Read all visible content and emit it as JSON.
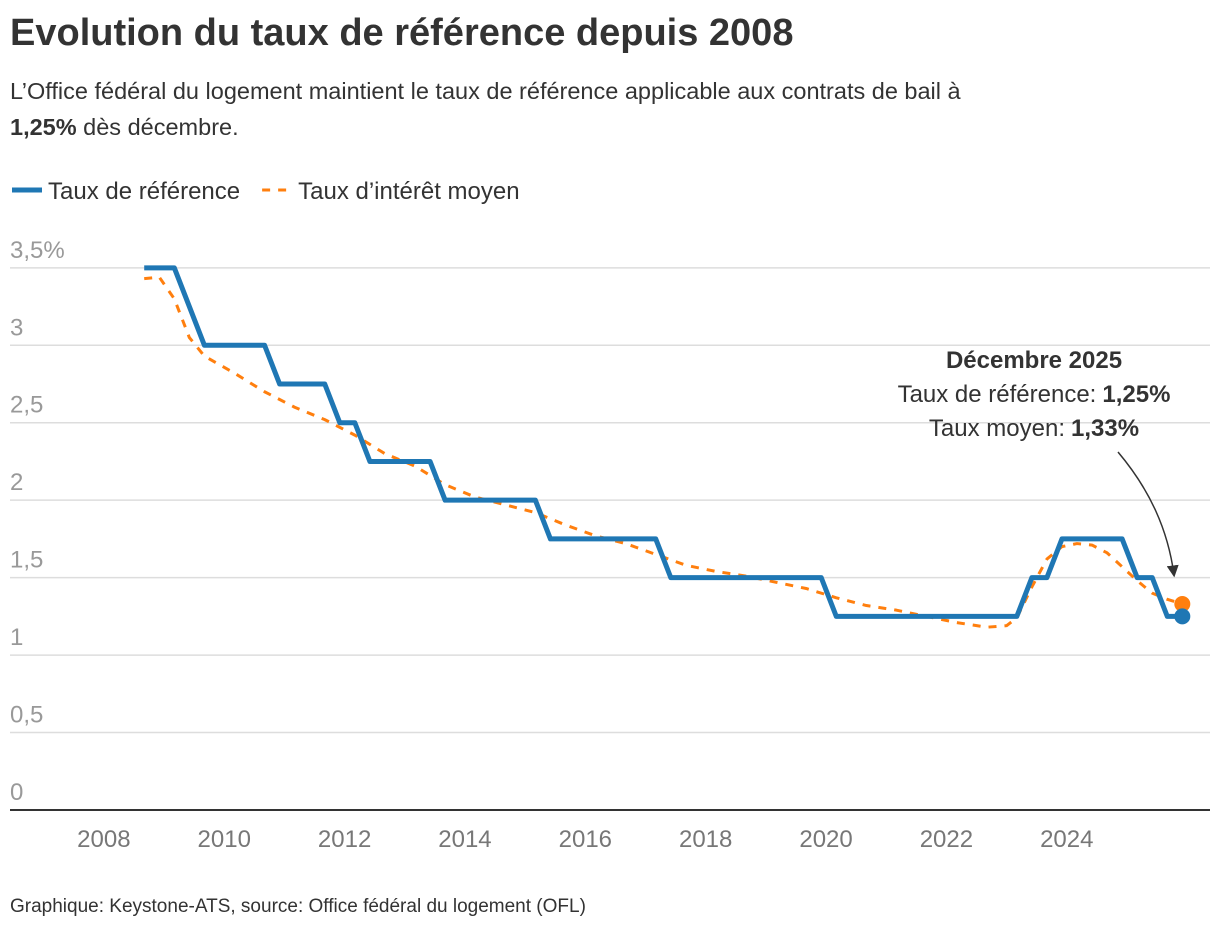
{
  "chart_data": {
    "type": "line",
    "title": "Evolution du taux de référence depuis 2008",
    "subtitle": {
      "text": "L’Office fédéral du logement maintient le taux de référence applicable aux contrats de bail à",
      "bold": "1,25%",
      "rest": "dès décembre."
    },
    "source": "Graphique: Keystone-ATS, source: Office fédéral du logement (OFL)",
    "annotation": {
      "title": "Décembre 2025",
      "lines": [
        {
          "label": "Taux de référence:",
          "value": "1,25%"
        },
        {
          "label": "Taux moyen:",
          "value": "1,33%"
        }
      ]
    },
    "xlim": [
      2006.44,
      2026.38
    ],
    "xticks": [
      2008,
      2010,
      2012,
      2014,
      2016,
      2018,
      2020,
      2022,
      2024
    ],
    "ylim": [
      0,
      3.615
    ],
    "yticks": [
      0,
      {
        "value": 0.5,
        "label": "0,5"
      },
      1,
      {
        "value": 1.5,
        "label": "1,5"
      },
      2,
      {
        "value": 2.5,
        "label": "2,5"
      },
      3,
      {
        "value": 3.5,
        "label": "3,5%"
      }
    ],
    "grid": true,
    "legend": "top-left",
    "series": [
      {
        "name": "Taux de référence",
        "color": "#1f77b4",
        "style": "solid",
        "x": [
          2008.67,
          2009.17,
          2009.67,
          2010.67,
          2010.92,
          2011.67,
          2011.92,
          2012.17,
          2012.42,
          2013.42,
          2013.67,
          2015.17,
          2015.42,
          2017.17,
          2017.42,
          2019.92,
          2020.17,
          2023.17,
          2023.42,
          2023.67,
          2023.92,
          2024.92,
          2025.17,
          2025.42,
          2025.67,
          2025.92
        ],
        "values": [
          3.5,
          3.5,
          3,
          3,
          2.75,
          2.75,
          2.5,
          2.5,
          2.25,
          2.25,
          2,
          2,
          1.75,
          1.75,
          1.5,
          1.5,
          1.25,
          1.25,
          1.5,
          1.5,
          1.75,
          1.75,
          1.5,
          1.5,
          1.25,
          1.25
        ]
      },
      {
        "name": "Taux d’intérêt moyen",
        "color": "#ff7f0e",
        "style": "dashed",
        "x": [
          2008.67,
          2008.92,
          2009.17,
          2009.42,
          2009.67,
          2010.17,
          2010.67,
          2011.17,
          2011.67,
          2012.17,
          2012.67,
          2013.17,
          2013.67,
          2014.17,
          2014.67,
          2015.17,
          2015.67,
          2016.17,
          2016.67,
          2017.17,
          2017.67,
          2018.17,
          2018.67,
          2019.17,
          2019.67,
          2020.17,
          2020.67,
          2021.17,
          2021.67,
          2022.17,
          2022.67,
          2023.0,
          2023.17,
          2023.42,
          2023.67,
          2023.92,
          2024.17,
          2024.42,
          2024.67,
          2024.92,
          2025.17,
          2025.42,
          2025.67,
          2025.92
        ],
        "values": [
          3.43,
          3.44,
          3.3,
          3.05,
          2.93,
          2.82,
          2.7,
          2.6,
          2.52,
          2.42,
          2.3,
          2.22,
          2.1,
          2.02,
          1.97,
          1.92,
          1.84,
          1.77,
          1.72,
          1.65,
          1.58,
          1.54,
          1.51,
          1.47,
          1.43,
          1.37,
          1.32,
          1.29,
          1.25,
          1.21,
          1.18,
          1.19,
          1.24,
          1.44,
          1.62,
          1.7,
          1.72,
          1.71,
          1.66,
          1.57,
          1.48,
          1.4,
          1.36,
          1.33
        ]
      }
    ]
  }
}
